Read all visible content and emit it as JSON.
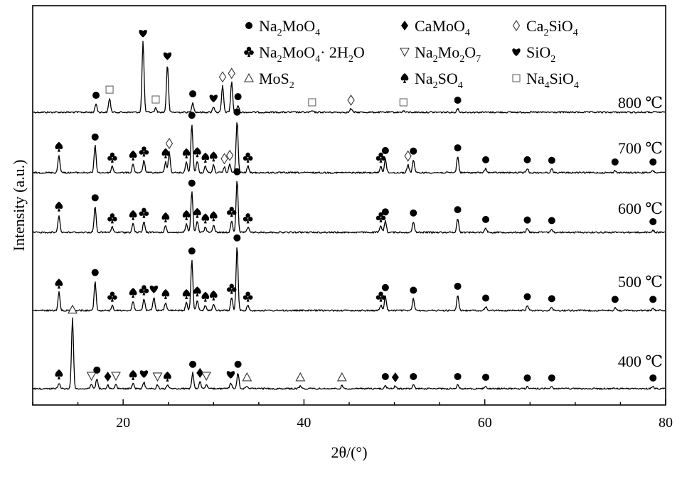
{
  "chart_data": {
    "type": "line",
    "xlabel": "2θ/(°)",
    "ylabel": "Intensity (a.u.)",
    "xlim": [
      10,
      80
    ],
    "xticks": [
      "20",
      "40",
      "60",
      "80"
    ],
    "grid": false,
    "legend_position": "top",
    "legend": [
      {
        "symbol": "circle",
        "label": "Na2MoO4",
        "parts": [
          [
            "Na",
            ""
          ],
          [
            "2",
            "sub"
          ],
          [
            "MoO",
            ""
          ],
          [
            "4",
            "sub"
          ]
        ]
      },
      {
        "symbol": "diamond",
        "label": "CaMoO4",
        "parts": [
          [
            "CaMoO",
            ""
          ],
          [
            "4",
            "sub"
          ]
        ]
      },
      {
        "symbol": "diamond-open",
        "label": "Ca2SiO4",
        "parts": [
          [
            "Ca",
            ""
          ],
          [
            "2",
            "sub"
          ],
          [
            "SiO",
            ""
          ],
          [
            "4",
            "sub"
          ]
        ]
      },
      {
        "symbol": "club",
        "label": "Na2MoO4·2H2O",
        "parts": [
          [
            "Na",
            ""
          ],
          [
            "2",
            "sub"
          ],
          [
            "MoO",
            ""
          ],
          [
            "4",
            "sub"
          ],
          [
            "· 2H",
            ""
          ],
          [
            "2",
            "sub"
          ],
          [
            "O",
            ""
          ]
        ]
      },
      {
        "symbol": "triangle-down",
        "label": "Na2Mo2O7",
        "parts": [
          [
            "Na",
            ""
          ],
          [
            "2",
            "sub"
          ],
          [
            "Mo",
            ""
          ],
          [
            "2",
            "sub"
          ],
          [
            "O",
            ""
          ],
          [
            "7",
            "sub"
          ]
        ]
      },
      {
        "symbol": "heart",
        "label": "SiO2",
        "parts": [
          [
            "SiO",
            ""
          ],
          [
            "2",
            "sub"
          ]
        ]
      },
      {
        "symbol": "triangle-open",
        "label": "MoS2",
        "parts": [
          [
            "MoS",
            ""
          ],
          [
            "2",
            "sub"
          ]
        ]
      },
      {
        "symbol": "spade",
        "label": "Na2SO4",
        "parts": [
          [
            "Na",
            ""
          ],
          [
            "2",
            "sub"
          ],
          [
            "SO",
            ""
          ],
          [
            "4",
            "sub"
          ]
        ]
      },
      {
        "symbol": "square-open",
        "label": "Na4SiO4",
        "parts": [
          [
            "Na",
            ""
          ],
          [
            "4",
            "sub"
          ],
          [
            "SiO",
            ""
          ],
          [
            "4",
            "sub"
          ]
        ]
      }
    ],
    "series": [
      {
        "name": "800 ℃",
        "peaks": [
          {
            "x": 17.0,
            "h": 0.12,
            "m": "circle"
          },
          {
            "x": 18.5,
            "h": 0.2,
            "m": "square-open"
          },
          {
            "x": 22.2,
            "h": 1.0,
            "m": "heart"
          },
          {
            "x": 23.6,
            "h": 0.06,
            "m": "square-open"
          },
          {
            "x": 24.9,
            "h": 0.68,
            "m": "heart"
          },
          {
            "x": 27.7,
            "h": 0.14,
            "m": "circle"
          },
          {
            "x": 30.0,
            "h": 0.08,
            "m": "heart"
          },
          {
            "x": 31.0,
            "h": 0.38,
            "m": "diamond-open"
          },
          {
            "x": 32.0,
            "h": 0.43,
            "m": "diamond-open"
          },
          {
            "x": 32.7,
            "h": 0.1,
            "m": "circle"
          },
          {
            "x": 40.9,
            "h": 0.02,
            "m": "square-open"
          },
          {
            "x": 45.2,
            "h": 0.05,
            "m": "diamond-open"
          },
          {
            "x": 51.0,
            "h": 0.02,
            "m": "square-open"
          },
          {
            "x": 57.0,
            "h": 0.05,
            "m": "circle"
          }
        ]
      },
      {
        "name": "700 ℃",
        "peaks": [
          {
            "x": 12.9,
            "h": 0.32,
            "m": "spade"
          },
          {
            "x": 16.9,
            "h": 0.5,
            "m": "circle"
          },
          {
            "x": 18.8,
            "h": 0.12,
            "m": "club"
          },
          {
            "x": 21.1,
            "h": 0.16,
            "m": "spade"
          },
          {
            "x": 22.3,
            "h": 0.23,
            "m": "club"
          },
          {
            "x": 24.7,
            "h": 0.2,
            "m": "spade"
          },
          {
            "x": 25.1,
            "h": 0.38,
            "m": "diamond-open"
          },
          {
            "x": 27.0,
            "h": 0.2,
            "m": "spade"
          },
          {
            "x": 27.6,
            "h": 0.9,
            "m": "circle"
          },
          {
            "x": 28.2,
            "h": 0.22,
            "m": "spade"
          },
          {
            "x": 29.1,
            "h": 0.12,
            "m": "spade"
          },
          {
            "x": 30.0,
            "h": 0.14,
            "m": "spade"
          },
          {
            "x": 31.2,
            "h": 0.1,
            "m": "diamond-open"
          },
          {
            "x": 31.8,
            "h": 0.16,
            "m": "diamond-open"
          },
          {
            "x": 32.6,
            "h": 0.96,
            "m": "circle"
          },
          {
            "x": 33.8,
            "h": 0.12,
            "m": "club"
          },
          {
            "x": 48.5,
            "h": 0.12,
            "m": "club"
          },
          {
            "x": 49.0,
            "h": 0.25,
            "m": "circle"
          },
          {
            "x": 51.5,
            "h": 0.15,
            "m": "diamond-open"
          },
          {
            "x": 52.1,
            "h": 0.24,
            "m": "circle"
          },
          {
            "x": 57.0,
            "h": 0.3,
            "m": "circle"
          },
          {
            "x": 60.1,
            "h": 0.08,
            "m": "circle"
          },
          {
            "x": 64.7,
            "h": 0.08,
            "m": "circle"
          },
          {
            "x": 67.4,
            "h": 0.07,
            "m": "circle"
          },
          {
            "x": 74.4,
            "h": 0.04,
            "m": "circle"
          },
          {
            "x": 78.6,
            "h": 0.04,
            "m": "circle"
          }
        ]
      },
      {
        "name": "600 ℃",
        "peaks": [
          {
            "x": 12.9,
            "h": 0.32,
            "m": "spade"
          },
          {
            "x": 16.9,
            "h": 0.48,
            "m": "circle"
          },
          {
            "x": 18.8,
            "h": 0.1,
            "m": "club"
          },
          {
            "x": 21.1,
            "h": 0.16,
            "m": "spade"
          },
          {
            "x": 22.3,
            "h": 0.2,
            "m": "club"
          },
          {
            "x": 24.7,
            "h": 0.12,
            "m": "spade"
          },
          {
            "x": 27.0,
            "h": 0.16,
            "m": "spade"
          },
          {
            "x": 27.6,
            "h": 0.75,
            "m": "circle"
          },
          {
            "x": 28.2,
            "h": 0.2,
            "m": "spade"
          },
          {
            "x": 29.1,
            "h": 0.1,
            "m": "spade"
          },
          {
            "x": 30.0,
            "h": 0.14,
            "m": "spade"
          },
          {
            "x": 32.0,
            "h": 0.22,
            "m": "club"
          },
          {
            "x": 32.6,
            "h": 0.96,
            "m": "circle"
          },
          {
            "x": 33.8,
            "h": 0.1,
            "m": "club"
          },
          {
            "x": 48.5,
            "h": 0.12,
            "m": "club"
          },
          {
            "x": 49.0,
            "h": 0.22,
            "m": "circle"
          },
          {
            "x": 52.1,
            "h": 0.2,
            "m": "circle"
          },
          {
            "x": 57.0,
            "h": 0.26,
            "m": "circle"
          },
          {
            "x": 60.1,
            "h": 0.08,
            "m": "circle"
          },
          {
            "x": 64.7,
            "h": 0.07,
            "m": "circle"
          },
          {
            "x": 67.4,
            "h": 0.06,
            "m": "circle"
          },
          {
            "x": 78.6,
            "h": 0.04,
            "m": "circle"
          }
        ]
      },
      {
        "name": "500 ℃",
        "peaks": [
          {
            "x": 12.9,
            "h": 0.28,
            "m": "spade"
          },
          {
            "x": 16.9,
            "h": 0.45,
            "m": "circle"
          },
          {
            "x": 18.8,
            "h": 0.08,
            "m": "club"
          },
          {
            "x": 21.1,
            "h": 0.14,
            "m": "spade"
          },
          {
            "x": 22.3,
            "h": 0.18,
            "m": "club"
          },
          {
            "x": 23.4,
            "h": 0.2,
            "m": "heart"
          },
          {
            "x": 24.7,
            "h": 0.12,
            "m": "spade"
          },
          {
            "x": 27.0,
            "h": 0.12,
            "m": "spade"
          },
          {
            "x": 27.6,
            "h": 0.78,
            "m": "circle"
          },
          {
            "x": 28.2,
            "h": 0.16,
            "m": "spade"
          },
          {
            "x": 29.1,
            "h": 0.08,
            "m": "spade"
          },
          {
            "x": 30.0,
            "h": 0.1,
            "m": "spade"
          },
          {
            "x": 32.0,
            "h": 0.2,
            "m": "club"
          },
          {
            "x": 32.6,
            "h": 0.98,
            "m": "circle"
          },
          {
            "x": 33.8,
            "h": 0.08,
            "m": "club"
          },
          {
            "x": 48.5,
            "h": 0.08,
            "m": "club"
          },
          {
            "x": 49.0,
            "h": 0.22,
            "m": "circle"
          },
          {
            "x": 52.1,
            "h": 0.18,
            "m": "circle"
          },
          {
            "x": 57.0,
            "h": 0.24,
            "m": "circle"
          },
          {
            "x": 60.1,
            "h": 0.06,
            "m": "circle"
          },
          {
            "x": 64.7,
            "h": 0.08,
            "m": "circle"
          },
          {
            "x": 67.4,
            "h": 0.05,
            "m": "circle"
          },
          {
            "x": 74.4,
            "h": 0.04,
            "m": "circle"
          },
          {
            "x": 78.6,
            "h": 0.04,
            "m": "circle"
          }
        ]
      },
      {
        "name": "400 ℃",
        "peaks": [
          {
            "x": 12.9,
            "h": 0.08,
            "m": "spade"
          },
          {
            "x": 14.4,
            "h": 0.98,
            "m": "triangle-open"
          },
          {
            "x": 16.5,
            "h": 0.06,
            "m": "triangle-down"
          },
          {
            "x": 17.1,
            "h": 0.14,
            "m": "circle"
          },
          {
            "x": 18.3,
            "h": 0.05,
            "m": "diamond"
          },
          {
            "x": 19.2,
            "h": 0.06,
            "m": "triangle-down"
          },
          {
            "x": 21.1,
            "h": 0.07,
            "m": "spade"
          },
          {
            "x": 22.3,
            "h": 0.09,
            "m": "heart"
          },
          {
            "x": 23.8,
            "h": 0.05,
            "m": "triangle-down"
          },
          {
            "x": 24.9,
            "h": 0.05,
            "m": "spade"
          },
          {
            "x": 27.7,
            "h": 0.22,
            "m": "circle"
          },
          {
            "x": 28.5,
            "h": 0.1,
            "m": "diamond"
          },
          {
            "x": 29.2,
            "h": 0.06,
            "m": "triangle-down"
          },
          {
            "x": 31.9,
            "h": 0.08,
            "m": "heart"
          },
          {
            "x": 32.7,
            "h": 0.22,
            "m": "circle"
          },
          {
            "x": 33.7,
            "h": 0.04,
            "m": "triangle-open"
          },
          {
            "x": 39.6,
            "h": 0.04,
            "m": "triangle-open"
          },
          {
            "x": 44.2,
            "h": 0.04,
            "m": "triangle-open"
          },
          {
            "x": 49.0,
            "h": 0.05,
            "m": "circle"
          },
          {
            "x": 50.1,
            "h": 0.04,
            "m": "diamond"
          },
          {
            "x": 52.1,
            "h": 0.05,
            "m": "circle"
          },
          {
            "x": 57.0,
            "h": 0.05,
            "m": "circle"
          },
          {
            "x": 60.1,
            "h": 0.04,
            "m": "circle"
          },
          {
            "x": 64.7,
            "h": 0.03,
            "m": "circle"
          },
          {
            "x": 67.4,
            "h": 0.03,
            "m": "circle"
          },
          {
            "x": 78.6,
            "h": 0.03,
            "m": "circle"
          }
        ]
      }
    ]
  }
}
